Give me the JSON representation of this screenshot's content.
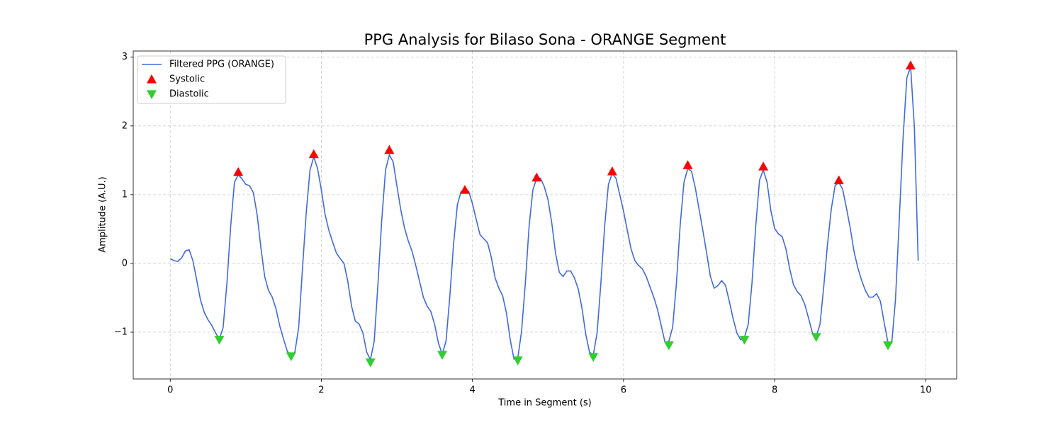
{
  "chart_data": {
    "type": "line",
    "title": "PPG Analysis for Bilaso Sona - ORANGE Segment",
    "xlabel": "Time in Segment (s)",
    "ylabel": "Amplitude (A.U.)",
    "xlim": [
      -0.49,
      10.41
    ],
    "ylim": [
      -1.68,
      3.09
    ],
    "xticks": [
      0,
      2,
      4,
      6,
      8,
      10
    ],
    "yticks": [
      {
        "value": -1,
        "label": "−1"
      },
      0,
      1,
      2,
      3
    ],
    "grid": true,
    "legend": "upper left",
    "series": [
      {
        "name": "Filtered PPG (ORANGE)",
        "color": "#4169e1",
        "marker": "line",
        "x": [
          0,
          0.05,
          0.1,
          0.15,
          0.2,
          0.25,
          0.3,
          0.35,
          0.4,
          0.45,
          0.5,
          0.55,
          0.6,
          0.65,
          0.7,
          0.75,
          0.8,
          0.85,
          0.9,
          0.95,
          1,
          1.05,
          1.1,
          1.15,
          1.2,
          1.25,
          1.3,
          1.35,
          1.4,
          1.45,
          1.5,
          1.55,
          1.6,
          1.65,
          1.7,
          1.75,
          1.8,
          1.85,
          1.9,
          1.95,
          2,
          2.05,
          2.1,
          2.15,
          2.2,
          2.25,
          2.3,
          2.35,
          2.4,
          2.45,
          2.5,
          2.55,
          2.6,
          2.65,
          2.7,
          2.75,
          2.8,
          2.85,
          2.9,
          2.95,
          3,
          3.05,
          3.1,
          3.15,
          3.2,
          3.25,
          3.3,
          3.35,
          3.4,
          3.45,
          3.5,
          3.55,
          3.6,
          3.65,
          3.7,
          3.75,
          3.8,
          3.85,
          3.9,
          3.95,
          4,
          4.05,
          4.1,
          4.15,
          4.2,
          4.25,
          4.3,
          4.35,
          4.4,
          4.45,
          4.5,
          4.55,
          4.6,
          4.65,
          4.7,
          4.75,
          4.8,
          4.85,
          4.9,
          4.95,
          5,
          5.05,
          5.1,
          5.15,
          5.2,
          5.25,
          5.3,
          5.35,
          5.4,
          5.45,
          5.5,
          5.55,
          5.6,
          5.65,
          5.7,
          5.75,
          5.8,
          5.85,
          5.9,
          5.95,
          6,
          6.05,
          6.1,
          6.15,
          6.2,
          6.25,
          6.3,
          6.35,
          6.4,
          6.45,
          6.5,
          6.55,
          6.6,
          6.65,
          6.7,
          6.75,
          6.8,
          6.85,
          6.9,
          6.95,
          7,
          7.05,
          7.1,
          7.15,
          7.2,
          7.25,
          7.3,
          7.35,
          7.4,
          7.45,
          7.5,
          7.55,
          7.6,
          7.65,
          7.7,
          7.75,
          7.8,
          7.85,
          7.9,
          7.95,
          8,
          8.05,
          8.1,
          8.15,
          8.2,
          8.25,
          8.3,
          8.35,
          8.4,
          8.45,
          8.5,
          8.55,
          8.6,
          8.65,
          8.7,
          8.75,
          8.8,
          8.85,
          8.9,
          8.95,
          9,
          9.05,
          9.1,
          9.15,
          9.2,
          9.25,
          9.3,
          9.35,
          9.4,
          9.45,
          9.5,
          9.55,
          9.6,
          9.65,
          9.7,
          9.75,
          9.8,
          9.85,
          9.9
        ],
        "values": [
          0.07,
          0.04,
          0.03,
          0.08,
          0.18,
          0.2,
          0.04,
          -0.24,
          -0.53,
          -0.71,
          -0.82,
          -0.9,
          -1.01,
          -1.1,
          -0.93,
          -0.29,
          0.54,
          1.18,
          1.29,
          1.23,
          1.15,
          1.13,
          1.03,
          0.71,
          0.23,
          -0.19,
          -0.39,
          -0.49,
          -0.66,
          -0.91,
          -1.1,
          -1.28,
          -1.33,
          -1.29,
          -0.93,
          -0.08,
          0.74,
          1.36,
          1.55,
          1.38,
          1.07,
          0.71,
          0.48,
          0.31,
          0.15,
          0.07,
          0,
          -0.26,
          -0.62,
          -0.84,
          -0.88,
          -1.01,
          -1.29,
          -1.4,
          -1.13,
          -0.29,
          0.64,
          1.36,
          1.58,
          1.48,
          1.13,
          0.79,
          0.52,
          0.33,
          0.18,
          -0.03,
          -0.26,
          -0.49,
          -0.62,
          -0.7,
          -0.89,
          -1.16,
          -1.32,
          -1.13,
          -0.49,
          0.28,
          0.85,
          1.05,
          1.05,
          1.05,
          0.87,
          0.64,
          0.42,
          0.36,
          0.3,
          0.09,
          -0.21,
          -0.36,
          -0.47,
          -0.72,
          -1.11,
          -1.39,
          -1.38,
          -0.99,
          -0.29,
          0.54,
          1.07,
          1.24,
          1.24,
          1.12,
          0.93,
          0.59,
          0.15,
          -0.13,
          -0.19,
          -0.11,
          -0.11,
          -0.21,
          -0.37,
          -0.65,
          -1.03,
          -1.29,
          -1.33,
          -1.01,
          -0.29,
          0.54,
          1.15,
          1.31,
          1.24,
          1.0,
          0.76,
          0.48,
          0.21,
          0.04,
          -0.03,
          -0.08,
          -0.19,
          -0.34,
          -0.49,
          -0.67,
          -0.91,
          -1.15,
          -1.13,
          -0.93,
          -0.29,
          0.56,
          1.18,
          1.38,
          1.34,
          1.1,
          0.79,
          0.48,
          0.15,
          -0.19,
          -0.36,
          -0.32,
          -0.25,
          -0.32,
          -0.55,
          -0.8,
          -1.01,
          -1.11,
          -1.08,
          -0.89,
          -0.29,
          0.54,
          1.21,
          1.36,
          1.18,
          0.77,
          0.51,
          0.43,
          0.39,
          0.21,
          -0.08,
          -0.31,
          -0.41,
          -0.47,
          -0.6,
          -0.8,
          -1.01,
          -1.06,
          -0.89,
          -0.34,
          0.28,
          0.79,
          1.13,
          1.18,
          1.08,
          0.81,
          0.52,
          0.18,
          -0.06,
          -0.24,
          -0.39,
          -0.49,
          -0.49,
          -0.44,
          -0.55,
          -0.86,
          -1.15,
          -1.16,
          -0.52,
          0.64,
          1.82,
          2.7,
          2.86,
          1.98,
          0.04
        ]
      },
      {
        "name": "Systolic",
        "color": "#ff0000",
        "marker": "triangle-up",
        "x": [
          0.9,
          1.9,
          2.9,
          3.9,
          4.85,
          5.85,
          6.85,
          7.85,
          8.85,
          9.8
        ],
        "values": [
          1.33,
          1.59,
          1.65,
          1.07,
          1.25,
          1.34,
          1.43,
          1.41,
          1.21,
          2.88
        ]
      },
      {
        "name": "Diastolic",
        "color": "#32cd32",
        "marker": "triangle-down",
        "x": [
          0.65,
          1.6,
          2.65,
          3.6,
          4.6,
          5.6,
          6.6,
          7.6,
          8.55,
          9.5
        ],
        "values": [
          -1.11,
          -1.35,
          -1.44,
          -1.33,
          -1.41,
          -1.36,
          -1.19,
          -1.11,
          -1.07,
          -1.19
        ]
      }
    ]
  }
}
